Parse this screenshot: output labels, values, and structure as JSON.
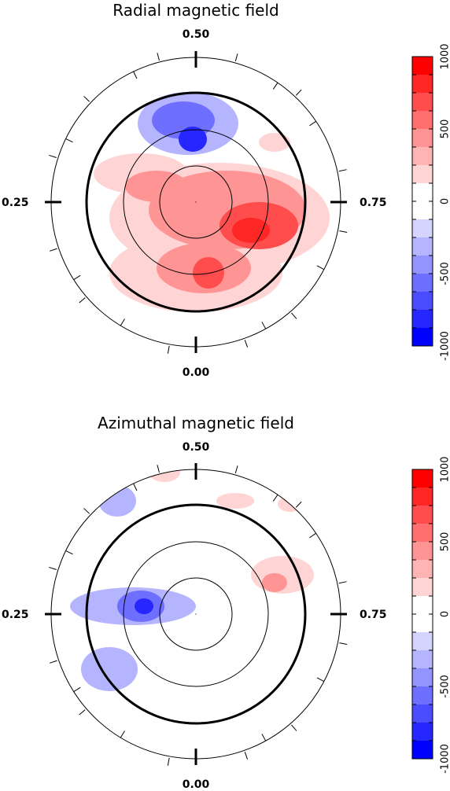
{
  "chart_data": [
    {
      "type": "polar-contour-map",
      "title": "Radial magnetic field",
      "phase_labels": {
        "top": "0.50",
        "left": "0.25",
        "right": "0.75",
        "bottom": "0.00"
      },
      "colorbar": {
        "range": [
          -1000,
          1000
        ],
        "ticks": [
          {
            "value": 1000,
            "label": "1000"
          },
          {
            "value": 500,
            "label": "500"
          },
          {
            "value": 0,
            "label": "0"
          },
          {
            "value": -500,
            "label": "-500"
          },
          {
            "value": -1000,
            "label": "-1000"
          }
        ],
        "levels": [
          {
            "value": 1000,
            "color": "#ff0000"
          },
          {
            "value": 875,
            "color": "#ff2626"
          },
          {
            "value": 750,
            "color": "#ff4c4c"
          },
          {
            "value": 625,
            "color": "#ff6f6f"
          },
          {
            "value": 500,
            "color": "#ff9494"
          },
          {
            "value": 375,
            "color": "#ffb4b4"
          },
          {
            "value": 250,
            "color": "#ffd4d4"
          },
          {
            "value": 125,
            "color": "#ffffff"
          },
          {
            "value": 0,
            "color": "#ffffff"
          },
          {
            "value": -125,
            "color": "#d4d4ff"
          },
          {
            "value": -250,
            "color": "#b4b4ff"
          },
          {
            "value": -375,
            "color": "#9494ff"
          },
          {
            "value": -500,
            "color": "#6f6fff"
          },
          {
            "value": -625,
            "color": "#4c4cff"
          },
          {
            "value": -750,
            "color": "#2626ff"
          },
          {
            "value": -875,
            "color": "#0000ff"
          }
        ]
      },
      "blobs": [
        {
          "cx": -0.05,
          "cy": 0.5,
          "rx": 0.32,
          "ry": 0.2,
          "value": -250
        },
        {
          "cx": -0.08,
          "cy": 0.52,
          "rx": 0.2,
          "ry": 0.12,
          "value": -500
        },
        {
          "cx": -0.02,
          "cy": 0.4,
          "rx": 0.09,
          "ry": 0.08,
          "value": -750
        },
        {
          "cx": -0.35,
          "cy": 0.18,
          "rx": 0.3,
          "ry": 0.13,
          "value": 250
        },
        {
          "cx": -0.25,
          "cy": 0.1,
          "rx": 0.2,
          "ry": 0.1,
          "value": 500
        },
        {
          "cx": 0.15,
          "cy": -0.1,
          "rx": 0.7,
          "ry": 0.35,
          "value": 250
        },
        {
          "cx": 0.2,
          "cy": -0.05,
          "rx": 0.5,
          "ry": 0.25,
          "value": 500
        },
        {
          "cx": 0.4,
          "cy": -0.15,
          "rx": 0.25,
          "ry": 0.15,
          "value": 750
        },
        {
          "cx": 0.35,
          "cy": -0.18,
          "rx": 0.12,
          "ry": 0.08,
          "value": 875
        },
        {
          "cx": 0.0,
          "cy": -0.45,
          "rx": 0.55,
          "ry": 0.25,
          "value": 250
        },
        {
          "cx": 0.05,
          "cy": -0.42,
          "rx": 0.3,
          "ry": 0.16,
          "value": 500
        },
        {
          "cx": 0.08,
          "cy": -0.45,
          "rx": 0.1,
          "ry": 0.1,
          "value": 750
        },
        {
          "cx": 0.5,
          "cy": 0.38,
          "rx": 0.1,
          "ry": 0.06,
          "value": 250
        }
      ]
    },
    {
      "type": "polar-contour-map",
      "title": "Azimuthal magnetic field",
      "phase_labels": {
        "top": "0.50",
        "left": "0.25",
        "right": "0.75",
        "bottom": "0.00"
      },
      "colorbar": {
        "range": [
          -1000,
          1000
        ],
        "ticks": [
          {
            "value": 1000,
            "label": "1000"
          },
          {
            "value": 500,
            "label": "500"
          },
          {
            "value": 0,
            "label": "0"
          },
          {
            "value": -500,
            "label": "-500"
          },
          {
            "value": -1000,
            "label": "-1000"
          }
        ],
        "levels": [
          {
            "value": 1000,
            "color": "#ff0000"
          },
          {
            "value": 875,
            "color": "#ff2626"
          },
          {
            "value": 750,
            "color": "#ff4c4c"
          },
          {
            "value": 625,
            "color": "#ff6f6f"
          },
          {
            "value": 500,
            "color": "#ff9494"
          },
          {
            "value": 375,
            "color": "#ffb4b4"
          },
          {
            "value": 250,
            "color": "#ffd4d4"
          },
          {
            "value": 125,
            "color": "#ffffff"
          },
          {
            "value": 0,
            "color": "#ffffff"
          },
          {
            "value": -125,
            "color": "#d4d4ff"
          },
          {
            "value": -250,
            "color": "#b4b4ff"
          },
          {
            "value": -375,
            "color": "#9494ff"
          },
          {
            "value": -500,
            "color": "#6f6fff"
          },
          {
            "value": -625,
            "color": "#4c4cff"
          },
          {
            "value": -750,
            "color": "#2626ff"
          },
          {
            "value": -875,
            "color": "#0000ff"
          }
        ]
      },
      "blobs": [
        {
          "cx": -0.5,
          "cy": 0.72,
          "rx": 0.12,
          "ry": 0.1,
          "value": -250
        },
        {
          "cx": -0.4,
          "cy": 0.05,
          "rx": 0.4,
          "ry": 0.12,
          "value": -250
        },
        {
          "cx": -0.35,
          "cy": 0.05,
          "rx": 0.15,
          "ry": 0.1,
          "value": -500
        },
        {
          "cx": -0.33,
          "cy": 0.05,
          "rx": 0.06,
          "ry": 0.05,
          "value": -750
        },
        {
          "cx": -0.55,
          "cy": -0.35,
          "rx": 0.18,
          "ry": 0.14,
          "value": -250
        },
        {
          "cx": -0.2,
          "cy": 0.9,
          "rx": 0.1,
          "ry": 0.06,
          "value": 250
        },
        {
          "cx": 0.25,
          "cy": 0.72,
          "rx": 0.12,
          "ry": 0.05,
          "value": 250
        },
        {
          "cx": 0.6,
          "cy": 0.7,
          "rx": 0.08,
          "ry": 0.05,
          "value": 250
        },
        {
          "cx": 0.55,
          "cy": 0.25,
          "rx": 0.2,
          "ry": 0.12,
          "value": 250
        },
        {
          "cx": 0.5,
          "cy": 0.2,
          "rx": 0.08,
          "ry": 0.06,
          "value": 500
        }
      ]
    }
  ]
}
